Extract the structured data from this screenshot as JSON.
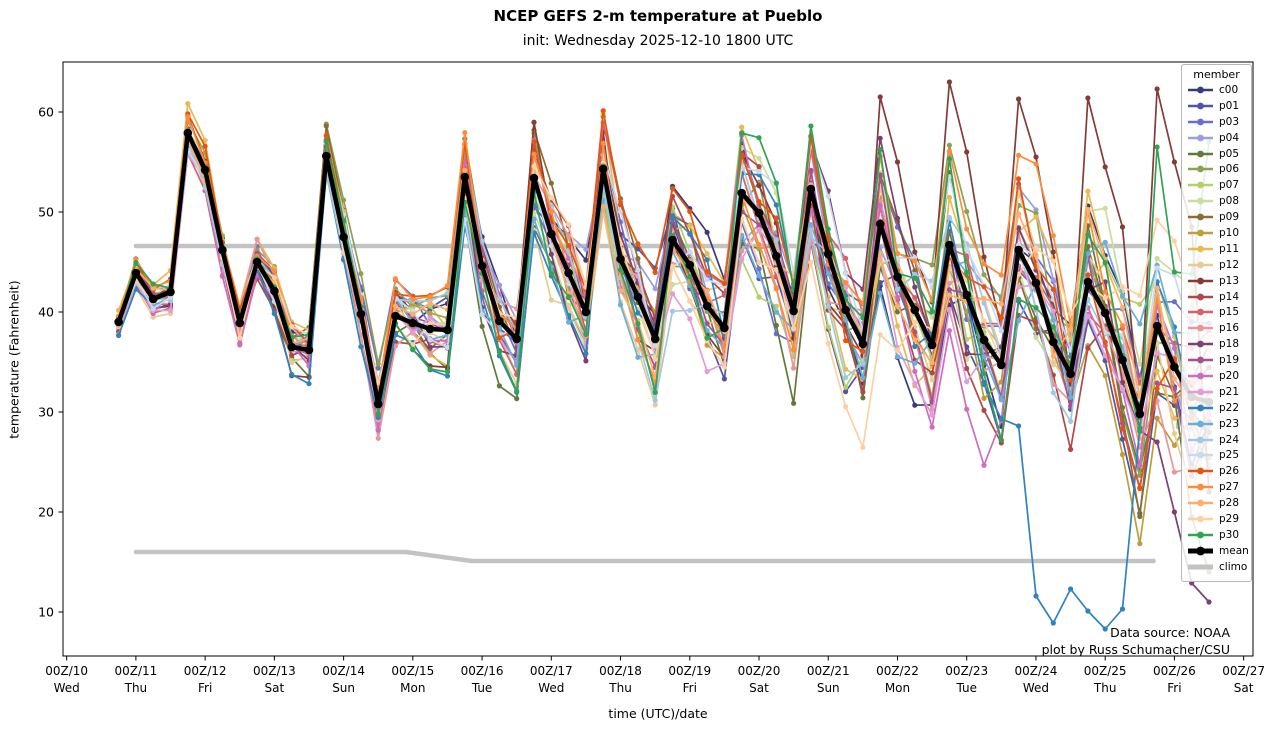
{
  "title": "NCEP GEFS 2-m temperature at Pueblo",
  "subtitle": "init: Wednesday 2025-12-10 1800 UTC",
  "axes": {
    "xlabel": "time (UTC)/date",
    "ylabel": "temperature (Fahrenheit)"
  },
  "annotation": {
    "line1": "Data source: NOAA",
    "line2": "plot by Russ Schumacher/CSU"
  },
  "legend": {
    "title": "member"
  },
  "chart_data": {
    "type": "line",
    "title": "NCEP GEFS 2-m temperature at Pueblo",
    "subtitle": "init: Wednesday 2025-12-10 1800 UTC",
    "xlabel": "time (UTC)/date",
    "ylabel": "temperature (Fahrenheit)",
    "ylim": [
      5.6,
      65.0
    ],
    "xlim_days": [
      -0.053,
      17.135
    ],
    "grid": false,
    "legend_position": "upper right",
    "y_ticks": [
      10,
      20,
      30,
      40,
      50,
      60
    ],
    "x_ticks": [
      {
        "t": 0,
        "label": "00Z/10",
        "day": "Wed"
      },
      {
        "t": 1,
        "label": "00Z/11",
        "day": "Thu"
      },
      {
        "t": 2,
        "label": "00Z/12",
        "day": "Fri"
      },
      {
        "t": 3,
        "label": "00Z/13",
        "day": "Sat"
      },
      {
        "t": 4,
        "label": "00Z/14",
        "day": "Sun"
      },
      {
        "t": 5,
        "label": "00Z/15",
        "day": "Mon"
      },
      {
        "t": 6,
        "label": "00Z/16",
        "day": "Tue"
      },
      {
        "t": 7,
        "label": "00Z/17",
        "day": "Wed"
      },
      {
        "t": 8,
        "label": "00Z/18",
        "day": "Thu"
      },
      {
        "t": 9,
        "label": "00Z/19",
        "day": "Fri"
      },
      {
        "t": 10,
        "label": "00Z/20",
        "day": "Sat"
      },
      {
        "t": 11,
        "label": "00Z/21",
        "day": "Sun"
      },
      {
        "t": 12,
        "label": "00Z/22",
        "day": "Mon"
      },
      {
        "t": 13,
        "label": "00Z/23",
        "day": "Tue"
      },
      {
        "t": 14,
        "label": "00Z/24",
        "day": "Wed"
      },
      {
        "t": 15,
        "label": "00Z/25",
        "day": "Thu"
      },
      {
        "t": 16,
        "label": "00Z/26",
        "day": "Fri"
      },
      {
        "t": 17,
        "label": "00Z/27",
        "day": "Sat"
      }
    ],
    "time_start_day": 0.75,
    "time_step_days": 0.25,
    "mean": {
      "name": "mean",
      "color": "#000000",
      "values": [
        39.0,
        43.9,
        41.3,
        42.0,
        57.9,
        54.2,
        46.2,
        38.9,
        45.0,
        42.1,
        36.5,
        36.2,
        55.6,
        47.5,
        39.8,
        30.8,
        39.6,
        38.9,
        38.3,
        38.2,
        53.5,
        44.6,
        39.1,
        37.3,
        53.4,
        47.8,
        43.9,
        40.0,
        54.3,
        45.3,
        41.5,
        37.3,
        47.2,
        44.7,
        40.6,
        38.4,
        51.9,
        49.9,
        45.6,
        40.1,
        52.3,
        45.8,
        40.2,
        36.8,
        48.8,
        43.5,
        40.2,
        36.7,
        46.7,
        41.7,
        37.2,
        34.7,
        46.2,
        42.9,
        37.0,
        33.8,
        43.0,
        39.9,
        35.2,
        29.8,
        38.6,
        34.5,
        31.5,
        31.0
      ]
    },
    "climo": {
      "name": "climo",
      "color": "#c3c3c3",
      "upper": {
        "t": [
          1.0,
          15.65
        ],
        "values": [
          46.6,
          46.6
        ]
      },
      "lower": {
        "t": [
          1.0,
          4.9,
          5.85,
          15.7
        ],
        "values": [
          16.0,
          16.0,
          15.1,
          15.1
        ]
      },
      "end_segment": {
        "t": [
          16.05,
          16.35
        ],
        "values": [
          28.5,
          45.5
        ]
      }
    },
    "members_estimated_from_pixels": true,
    "members": [
      {
        "name": "c00",
        "color": "#393b79",
        "seed": 1,
        "bias": -0.5,
        "amp": 0.05
      },
      {
        "name": "p01",
        "color": "#5254a3",
        "seed": 2,
        "bias": 0.3,
        "amp": -0.1
      },
      {
        "name": "p03",
        "color": "#6b6ecf",
        "seed": 3,
        "bias": -1.0,
        "amp": 0.0
      },
      {
        "name": "p04",
        "color": "#9c9ede",
        "seed": 4,
        "bias": 0.8,
        "amp": -0.15
      },
      {
        "name": "p05",
        "color": "#637939",
        "seed": 5,
        "bias": -1.5,
        "amp": 0.1
      },
      {
        "name": "p06",
        "color": "#8ca252",
        "seed": 6,
        "bias": 0.5,
        "amp": 0.15
      },
      {
        "name": "p07",
        "color": "#b5cf6b",
        "seed": 7,
        "bias": -0.8,
        "amp": -0.2
      },
      {
        "name": "p08",
        "color": "#cedb9c",
        "seed": 8,
        "bias": 0.2,
        "amp": 0.0
      },
      {
        "name": "p09",
        "color": "#8c6d31",
        "seed": 9,
        "bias": 1.2,
        "amp": 0.2
      },
      {
        "name": "p10",
        "color": "#bd9e39",
        "seed": 10,
        "bias": 0.5,
        "amp": 0.1
      },
      {
        "name": "p11",
        "color": "#e7ba52",
        "seed": 11,
        "bias": 1.5,
        "amp": 0.15
      },
      {
        "name": "p12",
        "color": "#e7cb94",
        "seed": 12,
        "bias": -0.3,
        "amp": 0.0
      },
      {
        "name": "p13",
        "color": "#843c39",
        "seed": 13,
        "bias": 1.0,
        "amp": 0.3
      },
      {
        "name": "p14",
        "color": "#ad494a",
        "seed": 14,
        "bias": -1.2,
        "amp": 0.1
      },
      {
        "name": "p15",
        "color": "#d6616b",
        "seed": 15,
        "bias": 0.6,
        "amp": 0.05
      },
      {
        "name": "p16",
        "color": "#e7969c",
        "seed": 16,
        "bias": -0.5,
        "amp": -0.05
      },
      {
        "name": "p18",
        "color": "#7b4173",
        "seed": 17,
        "bias": -0.6,
        "amp": 0.25
      },
      {
        "name": "p19",
        "color": "#a55194",
        "seed": 18,
        "bias": 0.4,
        "amp": 0.2
      },
      {
        "name": "p20",
        "color": "#ce6dbd",
        "seed": 19,
        "bias": -0.9,
        "amp": 0.15
      },
      {
        "name": "p21",
        "color": "#de9ed6",
        "seed": 20,
        "bias": -1.8,
        "amp": -0.1
      },
      {
        "name": "p22",
        "color": "#3182bd",
        "seed": 21,
        "bias": -2.0,
        "amp": 0.0
      },
      {
        "name": "p23",
        "color": "#6baed6",
        "seed": 22,
        "bias": -0.5,
        "amp": -0.1
      },
      {
        "name": "p24",
        "color": "#9ecae1",
        "seed": 23,
        "bias": 0.3,
        "amp": -0.05
      },
      {
        "name": "p25",
        "color": "#c6dbef",
        "seed": 24,
        "bias": -0.2,
        "amp": -0.15
      },
      {
        "name": "p26",
        "color": "#e6550d",
        "seed": 25,
        "bias": 1.8,
        "amp": 0.1
      },
      {
        "name": "p27",
        "color": "#fd8d3c",
        "seed": 26,
        "bias": 1.4,
        "amp": 0.2
      },
      {
        "name": "p28",
        "color": "#fdae6b",
        "seed": 27,
        "bias": 0.6,
        "amp": 0.0
      },
      {
        "name": "p29",
        "color": "#fdd0a2",
        "seed": 28,
        "bias": -1.0,
        "amp": -0.2
      },
      {
        "name": "p30",
        "color": "#31a354",
        "seed": 29,
        "bias": 0.0,
        "amp": 0.25
      }
    ],
    "overrides": {
      "p22": {
        "13.75": 28.6,
        "14.0": 11.6,
        "14.25": 8.9,
        "14.5": 12.3,
        "14.75": 10.1,
        "15.0": 8.3,
        "15.25": 10.3,
        "15.5": 28.4,
        "15.75": 43.0,
        "16.0": 38.5,
        "16.25": 30.0,
        "16.5": 28.0
      },
      "p13": {
        "11.75": 61.5,
        "12.0": 55.0,
        "12.25": 46.0,
        "12.5": 41.0,
        "12.75": 63.0,
        "13.0": 56.0,
        "13.25": 45.5,
        "13.5": 38.5,
        "13.75": 61.3,
        "14.0": 55.5,
        "14.25": 46.0,
        "14.5": 32.8,
        "14.75": 61.4,
        "15.0": 54.5,
        "15.25": 48.5,
        "15.5": 29.5,
        "15.75": 62.3,
        "16.0": 55.0,
        "16.25": 48.5,
        "16.5": 22.0
      },
      "p18": {
        "15.75": 27.0,
        "16.0": 20.0,
        "16.25": 12.9,
        "16.5": 11.0
      },
      "p05": {
        "16.0": 31.5,
        "16.25": 19.5,
        "16.5": 14.0
      },
      "p30": {
        "15.75": 56.5,
        "16.0": 44.0,
        "16.25": 43.8,
        "16.5": 57.0
      }
    }
  }
}
